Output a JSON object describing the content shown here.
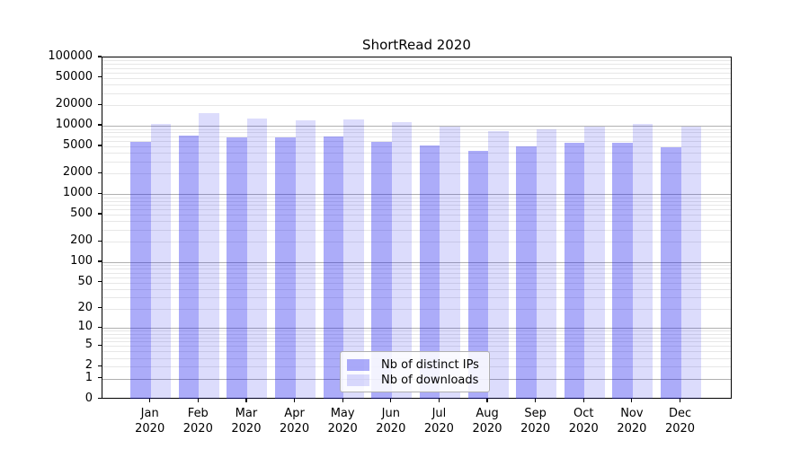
{
  "chart_data": {
    "type": "bar",
    "title": "ShortRead 2020",
    "xlabel": "",
    "ylabel": "",
    "y_scale": "log1p",
    "ylim": [
      0,
      100000
    ],
    "ytick_values": [
      0,
      1,
      2,
      5,
      10,
      20,
      50,
      100,
      200,
      500,
      1000,
      2000,
      5000,
      10000,
      20000,
      50000,
      100000
    ],
    "grid": true,
    "grid_major_at_powers_of_ten": true,
    "legend_position": "lower center inside plot",
    "months": [
      "Jan",
      "Feb",
      "Mar",
      "Apr",
      "May",
      "Jun",
      "Jul",
      "Aug",
      "Sep",
      "Oct",
      "Nov",
      "Dec"
    ],
    "year": "2020",
    "series": [
      {
        "name": "Nb of distinct IPs",
        "color": "rgba(17,17,238,0.35)",
        "values": [
          5900,
          7100,
          6700,
          6850,
          7000,
          5800,
          5100,
          4270,
          5050,
          5600,
          5700,
          4850
        ]
      },
      {
        "name": "Nb of downloads",
        "color": "rgba(17,17,238,0.15)",
        "values": [
          10500,
          15200,
          12900,
          11900,
          12400,
          11400,
          9800,
          8450,
          9000,
          9800,
          10500,
          9700
        ]
      }
    ]
  },
  "colors": {
    "background": "#ffffff",
    "axis": "#000000",
    "grid_major": "#b0b0b0",
    "grid_minor": "#e7e7e7",
    "text": "#000000"
  }
}
